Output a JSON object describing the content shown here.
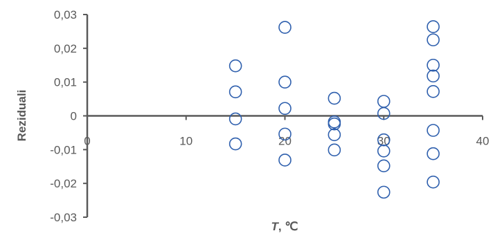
{
  "chart_data": {
    "type": "scatter",
    "title": "",
    "xlabel_var": "T",
    "xlabel_unit": ", ℃",
    "ylabel": "Reziduali",
    "xlim": [
      0,
      40
    ],
    "ylim": [
      -0.03,
      0.03
    ],
    "xticks": [
      0,
      10,
      20,
      30,
      40
    ],
    "xtick_labels": [
      "0",
      "10",
      "20",
      "30",
      "40"
    ],
    "yticks": [
      -0.03,
      -0.02,
      -0.01,
      0,
      0.01,
      0.02,
      0.03
    ],
    "ytick_labels": [
      "-0,03",
      "-0,02",
      "-0,01",
      "0",
      "0,01",
      "0,02",
      "0,03"
    ],
    "grid": false,
    "legend": "none",
    "marker_color": "#2E5FAD",
    "axis_color": "#595959",
    "series": [
      {
        "points": [
          {
            "x": 15,
            "y": 0.0148
          },
          {
            "x": 15,
            "y": 0.0071
          },
          {
            "x": 15,
            "y": -0.0009
          },
          {
            "x": 15,
            "y": -0.0083
          },
          {
            "x": 20,
            "y": 0.0262
          },
          {
            "x": 20,
            "y": 0.01
          },
          {
            "x": 20,
            "y": 0.0022
          },
          {
            "x": 20,
            "y": -0.0054
          },
          {
            "x": 20,
            "y": -0.0131
          },
          {
            "x": 25,
            "y": 0.0052
          },
          {
            "x": 25,
            "y": -0.0018
          },
          {
            "x": 25,
            "y": -0.0024
          },
          {
            "x": 25,
            "y": -0.0056
          },
          {
            "x": 25,
            "y": -0.0101
          },
          {
            "x": 30,
            "y": 0.0043
          },
          {
            "x": 30,
            "y": 0.0007
          },
          {
            "x": 30,
            "y": -0.0071
          },
          {
            "x": 30,
            "y": -0.0104
          },
          {
            "x": 30,
            "y": -0.0148
          },
          {
            "x": 30,
            "y": -0.0226
          },
          {
            "x": 35,
            "y": 0.0264
          },
          {
            "x": 35,
            "y": 0.0225
          },
          {
            "x": 35,
            "y": 0.015
          },
          {
            "x": 35,
            "y": 0.0118
          },
          {
            "x": 35,
            "y": 0.0072
          },
          {
            "x": 35,
            "y": -0.0043
          },
          {
            "x": 35,
            "y": -0.0112
          },
          {
            "x": 35,
            "y": -0.0196
          }
        ]
      }
    ]
  }
}
